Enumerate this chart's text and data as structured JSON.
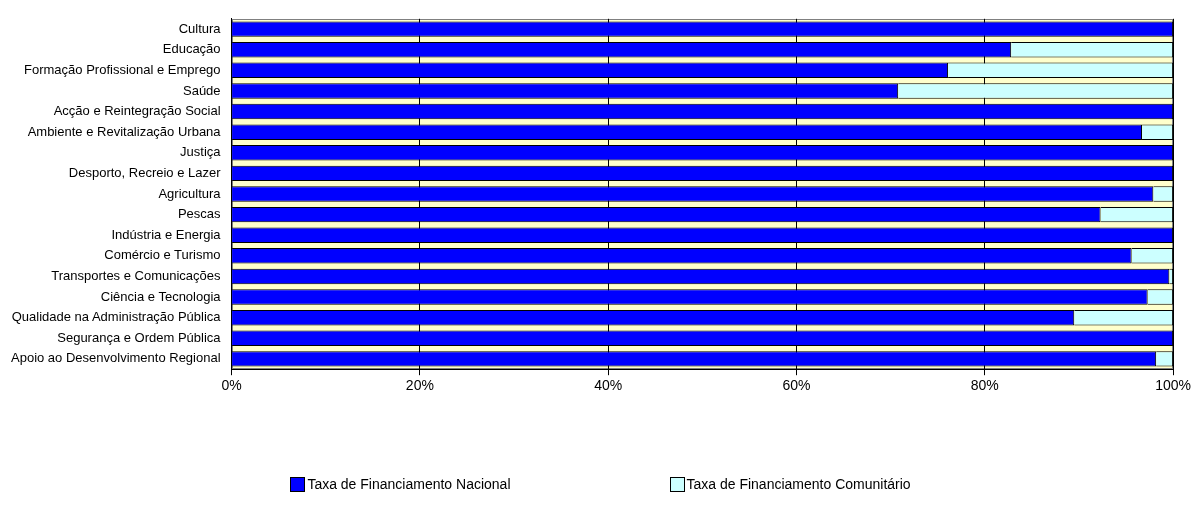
{
  "chart_data": {
    "type": "bar",
    "orientation": "horizontal",
    "stacked": true,
    "categories": [
      "Cultura",
      "Educação",
      "Formação Profissional e Emprego",
      "Saúde",
      "Acção e Reintegração Social",
      "Ambiente e Revitalização Urbana",
      "Justiça",
      "Desporto, Recreio e Lazer",
      "Agricultura",
      "Pescas",
      "Indústria e Energia",
      "Comércio e Turismo",
      "Transportes e Comunicações",
      "Ciência e Tecnologia",
      "Qualidade na Administração Pública",
      "Segurança e Ordem Pública",
      "Apoio ao Desenvolvimento Regional"
    ],
    "series": [
      {
        "name": "Taxa de Financiamento Nacional",
        "color": "#0000ff",
        "values": [
          100,
          82.8,
          76.1,
          70.8,
          100,
          96.7,
          100,
          100,
          97.9,
          92.3,
          100,
          95.6,
          99.6,
          97.3,
          89.5,
          100,
          98.2
        ]
      },
      {
        "name": "Taxa de Financiamento Comunitário",
        "color": "#ccffff",
        "values": [
          0,
          17.2,
          23.9,
          29.2,
          0,
          3.3,
          0,
          0,
          2.1,
          7.7,
          0,
          4.4,
          0.4,
          2.7,
          10.5,
          0,
          1.8
        ]
      }
    ],
    "xlim": [
      0,
      100
    ],
    "xticks": [
      {
        "value": 0,
        "label": "0%"
      },
      {
        "value": 20,
        "label": "20%"
      },
      {
        "value": 40,
        "label": "40%"
      },
      {
        "value": 60,
        "label": "60%"
      },
      {
        "value": 80,
        "label": "80%"
      },
      {
        "value": 100,
        "label": "100%"
      }
    ],
    "grid": "x",
    "legend": "bottom"
  }
}
